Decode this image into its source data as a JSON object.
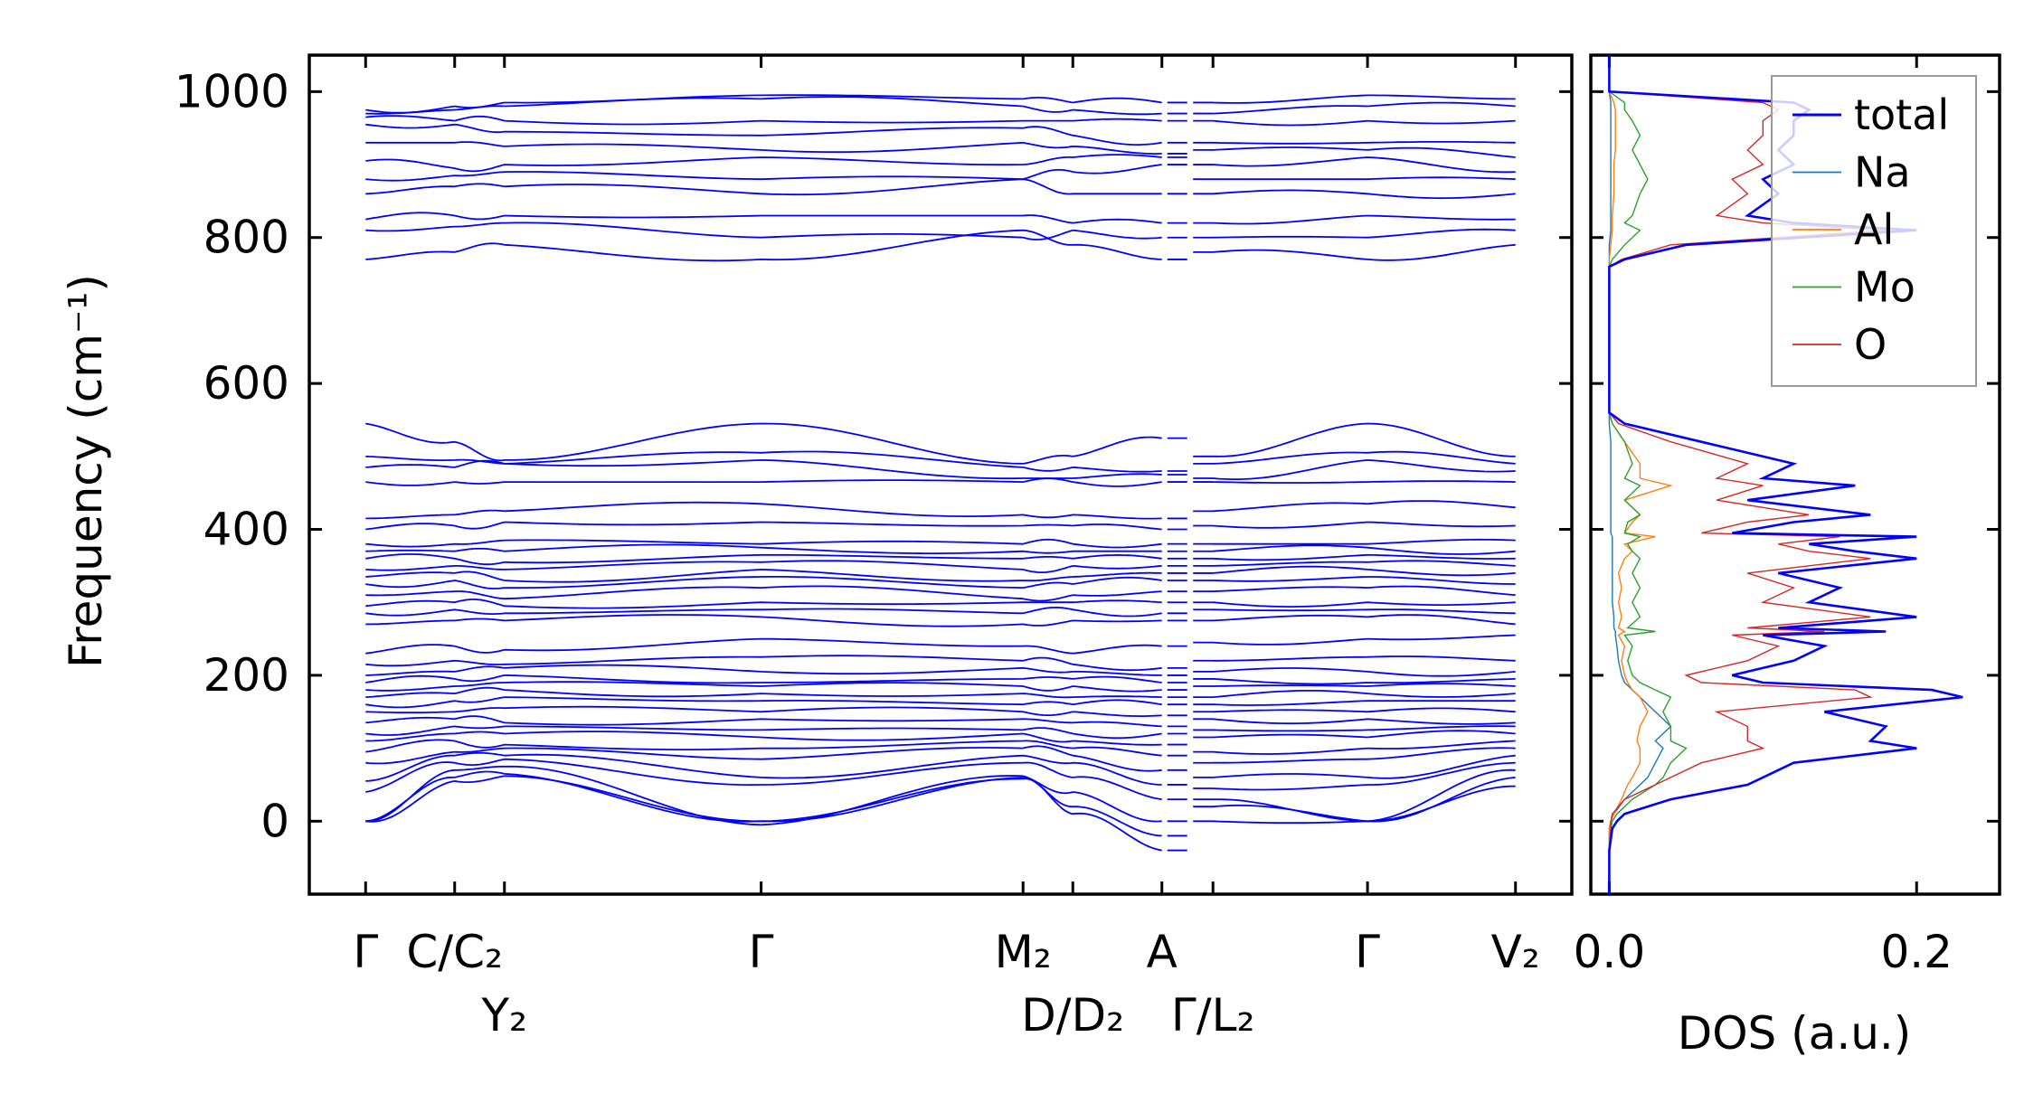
{
  "chart_data": [
    {
      "type": "line",
      "title": "",
      "ylabel": "Frequency (cm⁻¹)",
      "xlabel": "",
      "ylim": [
        -100,
        1050
      ],
      "xlim": [
        -0.43,
        9.21
      ],
      "yticks": [
        0,
        200,
        400,
        600,
        800,
        1000
      ],
      "kpoints": {
        "positions": [
          0,
          0.68,
          1.06,
          3.02,
          5.02,
          5.4,
          6.08,
          6.47,
          7.65,
          8.78
        ],
        "labels": [
          "Γ",
          "C/C₂",
          "Y₂",
          "Γ",
          "M₂",
          "D/D₂",
          "A",
          "Γ/L₂",
          "Γ",
          "V₂"
        ],
        "path_break_after_index": 6
      },
      "color": "#0000ff",
      "bands": [
        [
          0,
          55,
          62,
          0,
          58,
          10,
          -40,
          0,
          0,
          48
        ],
        [
          0,
          60,
          65,
          0,
          60,
          20,
          -20,
          20,
          0,
          60
        ],
        [
          0,
          70,
          75,
          -5,
          62,
          40,
          0,
          30,
          0,
          70
        ],
        [
          40,
          80,
          85,
          50,
          80,
          60,
          30,
          45,
          50,
          80
        ],
        [
          55,
          90,
          90,
          60,
          90,
          80,
          50,
          60,
          60,
          90
        ],
        [
          80,
          95,
          100,
          85,
          100,
          90,
          70,
          80,
          85,
          100
        ],
        [
          95,
          110,
          105,
          100,
          110,
          100,
          90,
          95,
          100,
          110
        ],
        [
          110,
          120,
          120,
          115,
          120,
          110,
          105,
          115,
          115,
          120
        ],
        [
          120,
          130,
          130,
          125,
          125,
          120,
          120,
          125,
          125,
          130
        ],
        [
          135,
          140,
          135,
          140,
          140,
          135,
          130,
          140,
          140,
          135
        ],
        [
          150,
          150,
          155,
          150,
          150,
          150,
          145,
          150,
          150,
          150
        ],
        [
          160,
          165,
          170,
          165,
          160,
          160,
          160,
          160,
          165,
          165
        ],
        [
          170,
          175,
          180,
          175,
          175,
          170,
          170,
          170,
          175,
          175
        ],
        [
          180,
          185,
          190,
          185,
          185,
          185,
          180,
          185,
          185,
          185
        ],
        [
          190,
          195,
          200,
          190,
          195,
          195,
          190,
          195,
          190,
          195
        ],
        [
          200,
          205,
          210,
          205,
          210,
          205,
          200,
          205,
          205,
          205
        ],
        [
          215,
          220,
          215,
          225,
          220,
          215,
          210,
          220,
          225,
          220
        ],
        [
          230,
          240,
          235,
          250,
          240,
          230,
          240,
          245,
          250,
          255
        ],
        [
          270,
          275,
          275,
          280,
          270,
          275,
          275,
          275,
          280,
          270
        ],
        [
          285,
          290,
          285,
          290,
          285,
          290,
          285,
          290,
          290,
          285
        ],
        [
          295,
          300,
          295,
          300,
          300,
          300,
          300,
          300,
          300,
          300
        ],
        [
          310,
          315,
          305,
          320,
          305,
          310,
          315,
          315,
          320,
          310
        ],
        [
          325,
          330,
          320,
          335,
          320,
          325,
          330,
          330,
          335,
          325
        ],
        [
          335,
          340,
          330,
          345,
          330,
          335,
          340,
          340,
          345,
          340
        ],
        [
          345,
          350,
          345,
          355,
          345,
          350,
          350,
          350,
          355,
          350
        ],
        [
          360,
          360,
          355,
          365,
          360,
          360,
          360,
          360,
          365,
          360
        ],
        [
          370,
          370,
          370,
          375,
          370,
          370,
          370,
          370,
          375,
          370
        ],
        [
          380,
          380,
          385,
          380,
          380,
          380,
          380,
          380,
          380,
          385
        ],
        [
          400,
          405,
          410,
          410,
          405,
          405,
          400,
          405,
          410,
          405
        ],
        [
          415,
          420,
          425,
          435,
          420,
          420,
          415,
          425,
          435,
          430
        ],
        [
          465,
          465,
          465,
          465,
          465,
          465,
          465,
          465,
          465,
          465
        ],
        [
          485,
          485,
          490,
          495,
          470,
          470,
          475,
          470,
          495,
          480
        ],
        [
          500,
          495,
          490,
          505,
          485,
          485,
          480,
          490,
          505,
          490
        ],
        [
          545,
          520,
          495,
          545,
          490,
          500,
          525,
          500,
          545,
          500
        ],
        [
          770,
          780,
          790,
          770,
          810,
          790,
          770,
          780,
          770,
          790
        ],
        [
          810,
          815,
          820,
          800,
          800,
          810,
          800,
          800,
          800,
          810
        ],
        [
          825,
          830,
          830,
          830,
          830,
          820,
          820,
          820,
          830,
          825
        ],
        [
          860,
          870,
          870,
          860,
          880,
          860,
          860,
          860,
          860,
          860
        ],
        [
          880,
          885,
          890,
          880,
          880,
          890,
          900,
          880,
          880,
          880
        ],
        [
          905,
          895,
          900,
          910,
          900,
          910,
          910,
          900,
          910,
          890
        ],
        [
          930,
          930,
          925,
          920,
          930,
          925,
          915,
          920,
          920,
          910
        ],
        [
          955,
          955,
          945,
          940,
          950,
          940,
          930,
          930,
          930,
          930
        ],
        [
          965,
          960,
          960,
          960,
          960,
          960,
          960,
          960,
          960,
          960
        ],
        [
          970,
          975,
          980,
          990,
          980,
          975,
          970,
          970,
          980,
          980
        ],
        [
          975,
          980,
          985,
          995,
          990,
          985,
          985,
          985,
          995,
          990
        ]
      ]
    },
    {
      "type": "line",
      "orientation": "horizontal-values",
      "xlabel": "DOS (a.u.)",
      "xlim": [
        -0.012,
        0.254
      ],
      "ylim": [
        -100,
        1050
      ],
      "xticks": [
        0.0,
        0.2
      ],
      "xtick_labels": [
        "0.0",
        "0.2"
      ],
      "legend_placement": "top-right",
      "frequency": [
        -40,
        -10,
        0,
        10,
        30,
        50,
        60,
        80,
        100,
        110,
        130,
        150,
        170,
        180,
        190,
        200,
        220,
        240,
        255,
        260,
        265,
        280,
        300,
        320,
        340,
        360,
        370,
        380,
        390,
        395,
        410,
        420,
        440,
        460,
        470,
        490,
        520,
        545,
        560,
        760,
        770,
        790,
        810,
        820,
        830,
        860,
        880,
        900,
        920,
        940,
        960,
        975,
        985,
        1000
      ],
      "series": [
        {
          "name": "total",
          "color": "#0000ff",
          "values": [
            0,
            0.002,
            0.005,
            0.01,
            0.04,
            0.09,
            0.1,
            0.12,
            0.2,
            0.17,
            0.18,
            0.14,
            0.23,
            0.21,
            0.1,
            0.08,
            0.12,
            0.14,
            0.1,
            0.18,
            0.11,
            0.2,
            0.13,
            0.15,
            0.11,
            0.2,
            0.16,
            0.13,
            0.2,
            0.08,
            0.12,
            0.17,
            0.09,
            0.16,
            0.1,
            0.12,
            0.06,
            0.01,
            0,
            0,
            0.01,
            0.05,
            0.2,
            0.12,
            0.09,
            0.11,
            0.1,
            0.12,
            0.11,
            0.12,
            0.12,
            0.13,
            0.12,
            0
          ]
        },
        {
          "name": "Na",
          "color": "#1f77b4",
          "values": [
            0,
            0,
            0.001,
            0.003,
            0.01,
            0.02,
            0.025,
            0.03,
            0.035,
            0.03,
            0.04,
            0.03,
            0.02,
            0.015,
            0.01,
            0.008,
            0.006,
            0.005,
            0.004,
            0.004,
            0.003,
            0.003,
            0.002,
            0.002,
            0.002,
            0.002,
            0.002,
            0.002,
            0.002,
            0.001,
            0.001,
            0.001,
            0.001,
            0.001,
            0.001,
            0.001,
            0.001,
            0,
            0,
            0,
            0,
            0,
            0.001,
            0.001,
            0.001,
            0.001,
            0.001,
            0.001,
            0.001,
            0.001,
            0.001,
            0.001,
            0.001,
            0
          ]
        },
        {
          "name": "Al",
          "color": "#ff7f0e",
          "values": [
            0,
            0,
            0.001,
            0.003,
            0.008,
            0.012,
            0.015,
            0.02,
            0.02,
            0.018,
            0.02,
            0.025,
            0.02,
            0.015,
            0.012,
            0.01,
            0.008,
            0.01,
            0.006,
            0.01,
            0.006,
            0.008,
            0.006,
            0.008,
            0.006,
            0.01,
            0.015,
            0.01,
            0.03,
            0.01,
            0.015,
            0.02,
            0.01,
            0.04,
            0.02,
            0.02,
            0.01,
            0.002,
            0,
            0,
            0,
            0.001,
            0.002,
            0.002,
            0.002,
            0.003,
            0.003,
            0.003,
            0.004,
            0.004,
            0.004,
            0.004,
            0.003,
            0
          ]
        },
        {
          "name": "Mo",
          "color": "#2ca02c",
          "values": [
            0,
            0.001,
            0.002,
            0.005,
            0.015,
            0.03,
            0.035,
            0.04,
            0.05,
            0.04,
            0.04,
            0.035,
            0.04,
            0.03,
            0.02,
            0.015,
            0.012,
            0.015,
            0.01,
            0.03,
            0.012,
            0.02,
            0.015,
            0.02,
            0.015,
            0.02,
            0.015,
            0.012,
            0.02,
            0.01,
            0.012,
            0.02,
            0.01,
            0.02,
            0.01,
            0.015,
            0.01,
            0.002,
            0,
            0,
            0.002,
            0.01,
            0.02,
            0.01,
            0.015,
            0.02,
            0.025,
            0.02,
            0.015,
            0.02,
            0.015,
            0.01,
            0.01,
            0
          ]
        },
        {
          "name": "O",
          "color": "#d62728",
          "values": [
            0,
            0.001,
            0.001,
            0.002,
            0.01,
            0.03,
            0.04,
            0.06,
            0.1,
            0.09,
            0.09,
            0.07,
            0.17,
            0.16,
            0.06,
            0.05,
            0.09,
            0.11,
            0.08,
            0.14,
            0.09,
            0.17,
            0.1,
            0.12,
            0.09,
            0.17,
            0.13,
            0.11,
            0.15,
            0.06,
            0.09,
            0.13,
            0.07,
            0.1,
            0.07,
            0.09,
            0.04,
            0.006,
            0,
            0,
            0.008,
            0.04,
            0.18,
            0.1,
            0.07,
            0.09,
            0.08,
            0.1,
            0.09,
            0.1,
            0.1,
            0.11,
            0.1,
            0
          ]
        }
      ]
    }
  ]
}
